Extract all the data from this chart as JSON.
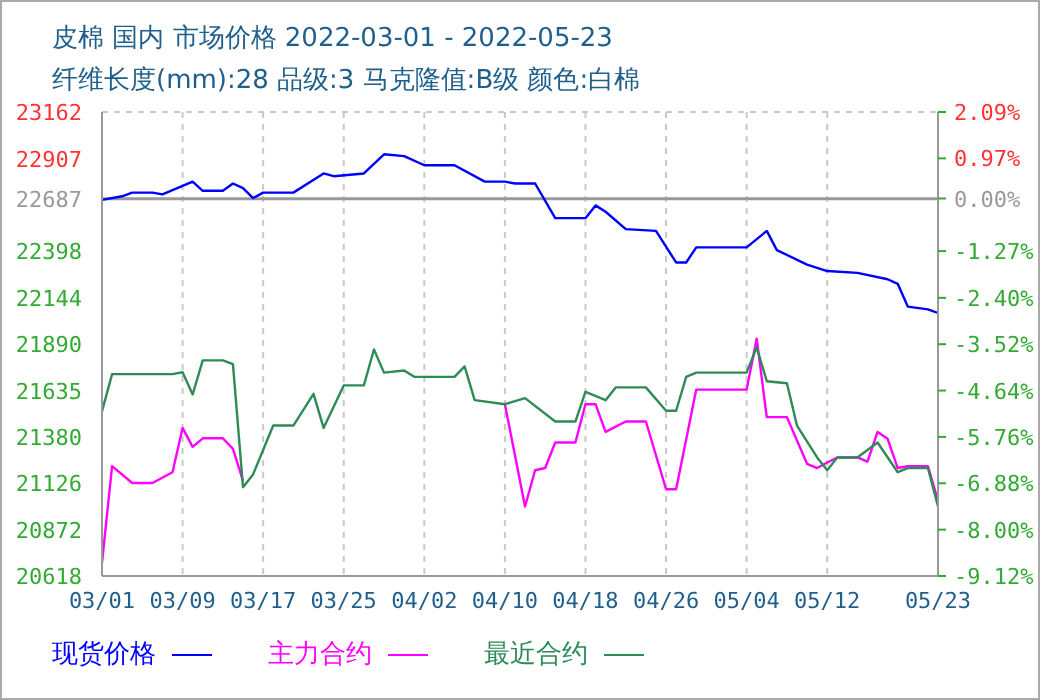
{
  "chart_data": {
    "type": "line",
    "title": "皮棉 国内 市场价格 2022-03-01 - 2022-05-23",
    "subtitle": "纤维长度(mm):28 品级:3 马克隆值:B级 颜色:白棉",
    "xlim": [
      "--03-01",
      "--05-23"
    ],
    "xticks": [
      {
        "value": "--03-01",
        "label": "03/01"
      },
      {
        "value": "--03-09",
        "label": "03/09"
      },
      {
        "value": "--03-17",
        "label": "03/17"
      },
      {
        "value": "--03-25",
        "label": "03/25"
      },
      {
        "value": "--04-02",
        "label": "04/02"
      },
      {
        "value": "--04-10",
        "label": "04/10"
      },
      {
        "value": "--04-18",
        "label": "04/18"
      },
      {
        "value": "--04-26",
        "label": "04/26"
      },
      {
        "value": "--05-04",
        "label": "05/04"
      },
      {
        "value": "--05-12",
        "label": "05/12"
      },
      {
        "value": "--05-23",
        "label": "05/23"
      }
    ],
    "ylim": [
      20618,
      23162
    ],
    "yticks": [
      20618,
      20872,
      21126,
      21380,
      21635,
      21890,
      22144,
      22398,
      22687,
      22907,
      23162
    ],
    "y2lim": [
      -9.12,
      2.09
    ],
    "y2ticks": [
      {
        "value": -9.12,
        "label": "-9.12%"
      },
      {
        "value": -8.0,
        "label": "-8.00%"
      },
      {
        "value": -6.88,
        "label": "-6.88%"
      },
      {
        "value": -5.76,
        "label": "-5.76%"
      },
      {
        "value": -4.64,
        "label": "-4.64%"
      },
      {
        "value": -3.52,
        "label": "-3.52%"
      },
      {
        "value": -2.4,
        "label": "-2.40%"
      },
      {
        "value": -1.27,
        "label": "-1.27%"
      },
      {
        "value": 0,
        "label": "0.00%"
      },
      {
        "value": 0.97,
        "label": "0.97%"
      },
      {
        "value": 2.09,
        "label": "2.09%"
      }
    ],
    "ref_lines": [
      {
        "axis": "y",
        "value": 22687,
        "color": "#999999"
      }
    ],
    "grid": true,
    "legend": "bottom",
    "marker": "none",
    "line_style": "solid",
    "series": [
      {
        "name": "现货价格",
        "color": "#0000ff",
        "x": [
          "--03-01",
          "--03-03",
          "--03-04",
          "--03-06",
          "--03-07",
          "--03-10",
          "--03-11",
          "--03-13",
          "--03-14",
          "--03-15",
          "--03-16",
          "--03-17",
          "--03-20",
          "--03-23",
          "--03-24",
          "--03-27",
          "--03-29",
          "--03-31",
          "--04-02",
          "--04-05",
          "--04-08",
          "--04-10",
          "--04-11",
          "--04-13",
          "--04-15",
          "--04-18",
          "--04-19",
          "--04-20",
          "--04-22",
          "--04-25",
          "--04-27",
          "--04-28",
          "--04-29",
          "--05-04",
          "--05-06",
          "--05-07",
          "--05-10",
          "--05-12",
          "--05-15",
          "--05-18",
          "--05-19",
          "--05-20",
          "--05-22",
          "--05-23"
        ],
        "values": [
          22680,
          22700,
          22720,
          22720,
          22710,
          22780,
          22730,
          22730,
          22770,
          22745,
          22690,
          22720,
          22720,
          22825,
          22810,
          22825,
          22930,
          22920,
          22870,
          22870,
          22780,
          22780,
          22770,
          22770,
          22580,
          22580,
          22650,
          22615,
          22520,
          22510,
          22337,
          22337,
          22420,
          22420,
          22510,
          22405,
          22325,
          22290,
          22280,
          22245,
          22220,
          22095,
          22080,
          22060
        ]
      },
      {
        "name": "主力合约",
        "color": "#ff00ff",
        "x": [
          "--03-01",
          "--03-02",
          "--03-04",
          "--03-06",
          "--03-08",
          "--03-09",
          "--03-10",
          "--03-11",
          "--03-13",
          "--03-14",
          "--03-15",
          "--03-16",
          "--03-18",
          "--03-20",
          "--03-22",
          "--03-23",
          "--03-25",
          "--03-27",
          "--03-28",
          "--03-29",
          "--03-31",
          "--04-01",
          "--04-05",
          "--04-06",
          "--04-07",
          "--04-10",
          "--04-12",
          "--04-13",
          "--04-14",
          "--04-15",
          "--04-17",
          "--04-18",
          "--04-19",
          "--04-20",
          "--04-22",
          "--04-24",
          "--04-26",
          "--04-27",
          "--04-29",
          "--05-04",
          "--05-05",
          "--05-06",
          "--05-08",
          "--05-10",
          "--05-11",
          "--05-12",
          "--05-13",
          "--05-15",
          "--05-16",
          "--05-17",
          "--05-18",
          "--05-19",
          "--05-20",
          "--05-22",
          "--05-23"
        ],
        "values": [
          20690,
          21220,
          21128,
          21128,
          21187,
          21430,
          21326,
          21373,
          21373,
          21315,
          21140,
          null,
          null,
          null,
          null,
          null,
          null,
          null,
          null,
          null,
          null,
          null,
          null,
          null,
          null,
          21560,
          20999,
          21198,
          21210,
          21350,
          21350,
          21560,
          21560,
          21408,
          21465,
          21465,
          21094,
          21094,
          21640,
          21640,
          21919,
          21489,
          21489,
          21233,
          21210,
          21240,
          21268,
          21268,
          21245,
          21408,
          21370,
          21210,
          21220,
          21220,
          21030
        ]
      },
      {
        "name": "最近合约",
        "color": "#2e8b57",
        "x": [
          "--03-01",
          "--03-02",
          "--03-08",
          "--03-09",
          "--03-10",
          "--03-11",
          "--03-13",
          "--03-14",
          "--03-15",
          "--03-16",
          "--03-18",
          "--03-20",
          "--03-22",
          "--03-23",
          "--03-25",
          "--03-27",
          "--03-28",
          "--03-29",
          "--03-31",
          "--04-01",
          "--04-05",
          "--04-06",
          "--04-07",
          "--04-10",
          "--04-12",
          "--04-15",
          "--04-17",
          "--04-18",
          "--04-20",
          "--04-21",
          "--04-24",
          "--04-26",
          "--04-27",
          "--04-28",
          "--04-29",
          "--05-04",
          "--05-05",
          "--05-06",
          "--05-08",
          "--05-09",
          "--05-11",
          "--05-12",
          "--05-13",
          "--05-15",
          "--05-17",
          "--05-19",
          "--05-20",
          "--05-22",
          "--05-23"
        ],
        "values": [
          21520,
          21725,
          21725,
          21735,
          21613,
          21800,
          21800,
          21780,
          21105,
          21175,
          21443,
          21443,
          21617,
          21430,
          21663,
          21663,
          21860,
          21733,
          21745,
          21710,
          21710,
          21767,
          21582,
          21560,
          21593,
          21465,
          21465,
          21628,
          21582,
          21652,
          21652,
          21524,
          21524,
          21710,
          21733,
          21733,
          21872,
          21686,
          21675,
          21443,
          21268,
          21198,
          21268,
          21268,
          21350,
          21187,
          21210,
          21210,
          20999
        ]
      }
    ]
  }
}
